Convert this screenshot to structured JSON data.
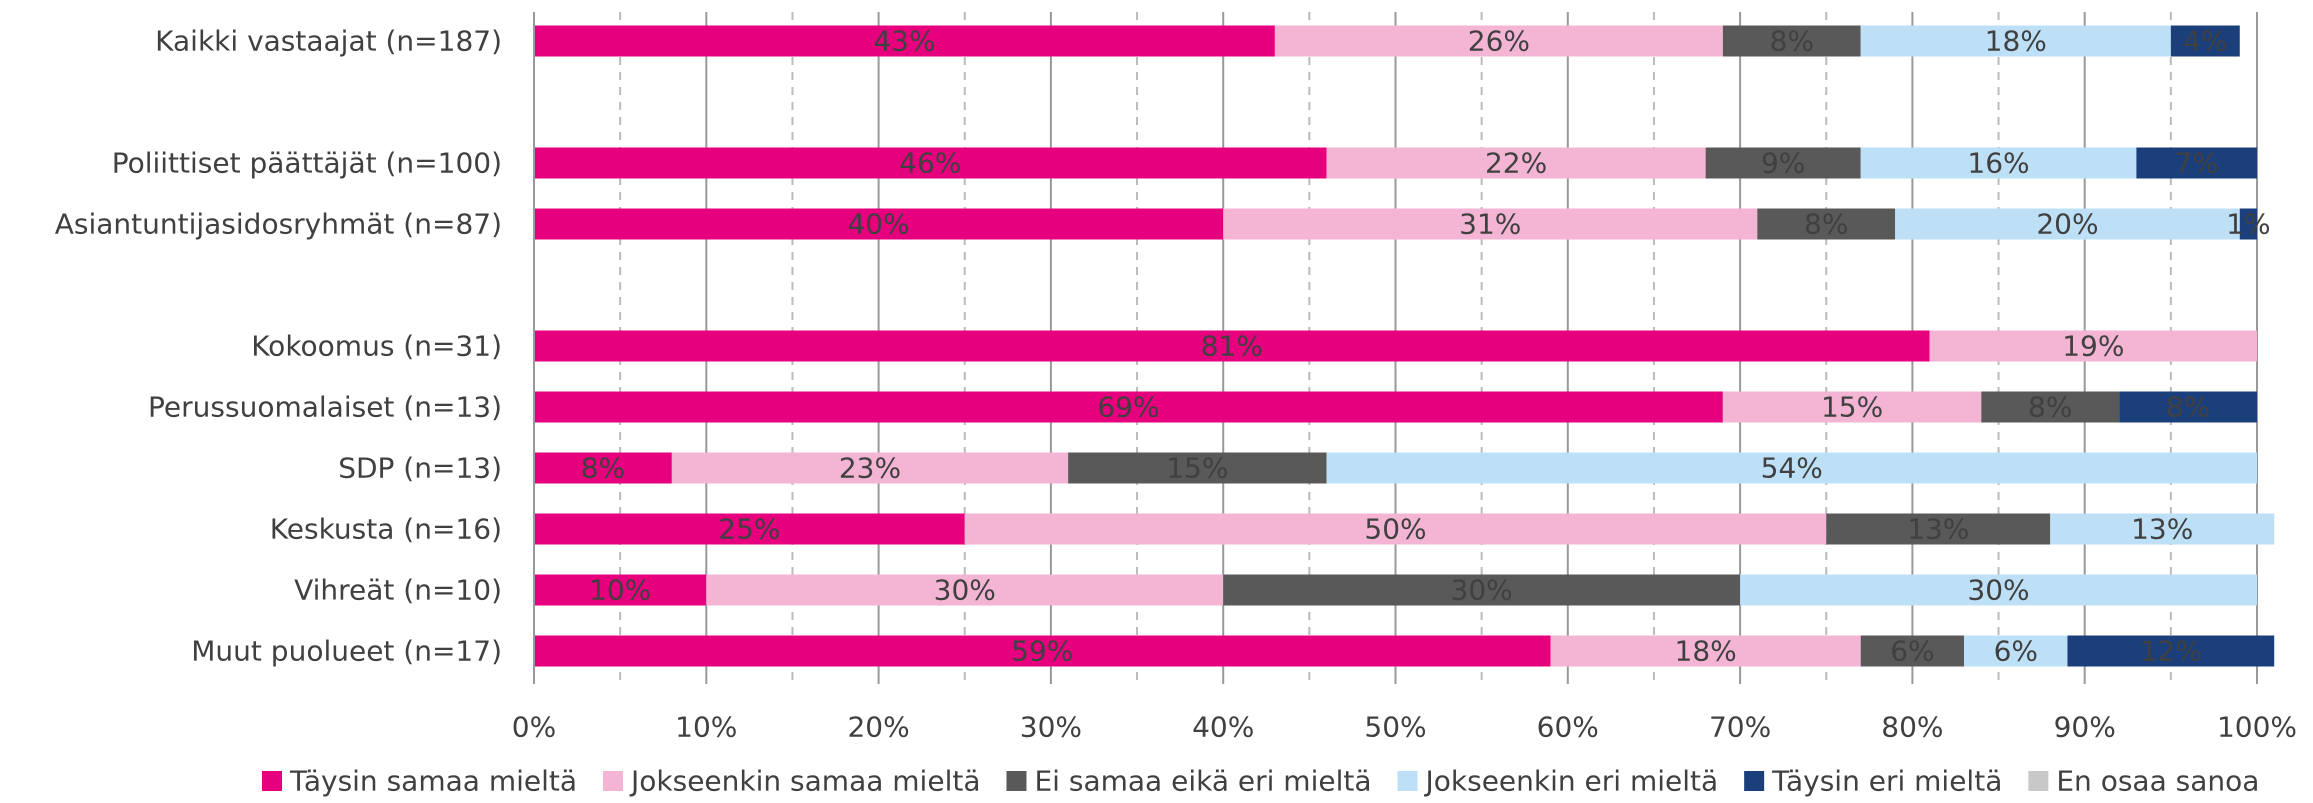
{
  "chart_data": {
    "type": "stacked_barh",
    "categories": [
      "Kaikki vastaajat (n=187)",
      null,
      "Poliittiset päättäjät (n=100)",
      "Asiantuntijasidosryhmät (n=87)",
      null,
      "Kokoomus (n=31)",
      "Perussuomalaiset (n=13)",
      "SDP (n=13)",
      "Keskusta (n=16)",
      "Vihreät (n=10)",
      "Muut puolueet (n=17)"
    ],
    "series": [
      {
        "name": "Täysin samaa mieltä",
        "color": "#e6007e",
        "label_color": "#ffffff",
        "values": [
          43,
          null,
          46,
          40,
          null,
          81,
          69,
          8,
          25,
          10,
          59
        ],
        "value_labels": [
          "43%",
          null,
          "46%",
          "40%",
          null,
          "81%",
          "69%",
          "8%",
          "25%",
          "10%",
          "59%"
        ]
      },
      {
        "name": "Jokseenkin samaa mieltä",
        "color": "#f4b5d5",
        "label_color": "#1b3f7a",
        "values": [
          26,
          null,
          22,
          31,
          null,
          19,
          15,
          23,
          50,
          30,
          18
        ],
        "value_labels": [
          "26%",
          null,
          "22%",
          "31%",
          null,
          "19%",
          "15%",
          "23%",
          "50%",
          "30%",
          "18%"
        ]
      },
      {
        "name": "Ei samaa eikä eri mieltä",
        "color": "#595959",
        "label_color": "#ffffff",
        "values": [
          8,
          null,
          9,
          8,
          null,
          null,
          8,
          15,
          13,
          30,
          6
        ],
        "value_labels": [
          "8%",
          null,
          "9%",
          "8%",
          null,
          null,
          "8%",
          "15%",
          "13%",
          "30%",
          "6%"
        ]
      },
      {
        "name": "Jokseenkin eri mieltä",
        "color": "#bde0f7",
        "label_color": "#1b3f7a",
        "values": [
          18,
          null,
          16,
          20,
          null,
          null,
          null,
          54,
          13,
          30,
          6
        ],
        "value_labels": [
          "18%",
          null,
          "16%",
          "20%",
          null,
          null,
          null,
          "54%",
          "13%",
          "30%",
          "6%"
        ]
      },
      {
        "name": "Täysin eri mieltä",
        "color": "#1b3f7a",
        "label_color": "#ffffff",
        "values": [
          4,
          null,
          7,
          1,
          null,
          null,
          8,
          null,
          null,
          null,
          12
        ],
        "value_labels": [
          "4%",
          null,
          "7%",
          "1%",
          null,
          null,
          "8%",
          null,
          null,
          null,
          "12%"
        ]
      },
      {
        "name": "En osaa sanoa",
        "color": "#c8c8c8",
        "label_color": "#ffffff",
        "values": [
          null,
          null,
          null,
          null,
          null,
          null,
          null,
          null,
          null,
          null,
          null
        ],
        "value_labels": [
          null,
          null,
          null,
          null,
          null,
          null,
          null,
          null,
          null,
          null,
          null
        ]
      }
    ],
    "xlim": [
      0,
      100
    ],
    "xticks": [
      {
        "value": 0,
        "label": "0%"
      },
      {
        "value": 10,
        "label": "10%"
      },
      {
        "value": 20,
        "label": "20%"
      },
      {
        "value": 30,
        "label": "30%"
      },
      {
        "value": 40,
        "label": "40%"
      },
      {
        "value": 50,
        "label": "50%"
      },
      {
        "value": 60,
        "label": "60%"
      },
      {
        "value": 70,
        "label": "70%"
      },
      {
        "value": 80,
        "label": "80%"
      },
      {
        "value": 90,
        "label": "90%"
      },
      {
        "value": 100,
        "label": "100%"
      }
    ],
    "minor_xticks": [
      5,
      15,
      25,
      35,
      45,
      55,
      65,
      75,
      85,
      95
    ],
    "grid": true,
    "legend": "bottom"
  }
}
